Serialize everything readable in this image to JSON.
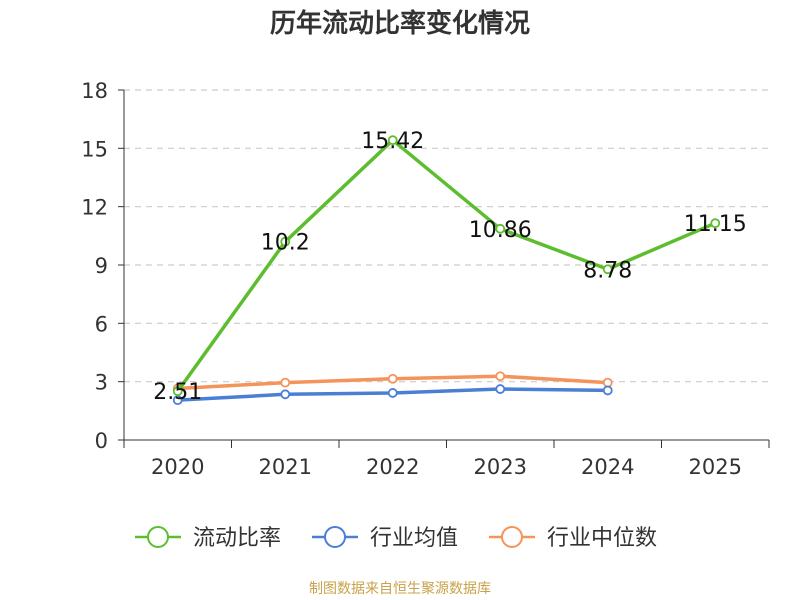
{
  "chart_data": {
    "type": "line",
    "title": "历年流动比率变化情况",
    "categories": [
      "2020",
      "2021",
      "2022",
      "2023",
      "2024",
      "2025"
    ],
    "ylim": [
      0,
      18
    ],
    "yticks": [
      "0",
      "3",
      "6",
      "9",
      "12",
      "15",
      "18"
    ],
    "grid": "horizontal dashed",
    "legend_position": "bottom",
    "series": [
      {
        "name": "流动比率",
        "color": "#5cbd2e",
        "values": [
          2.51,
          10.2,
          15.42,
          10.86,
          8.78,
          11.15
        ],
        "data_labels": [
          "2.51",
          "10.2",
          "15.42",
          "10.86",
          "8.78",
          "11.15"
        ]
      },
      {
        "name": "行业均值",
        "color": "#4a7fd6",
        "values": [
          2.05,
          2.35,
          2.42,
          2.62,
          2.55,
          null
        ]
      },
      {
        "name": "行业中位数",
        "color": "#f4935a",
        "values": [
          2.65,
          2.95,
          3.15,
          3.28,
          2.95,
          null
        ]
      }
    ]
  },
  "source": "制图数据来自恒生聚源数据库"
}
